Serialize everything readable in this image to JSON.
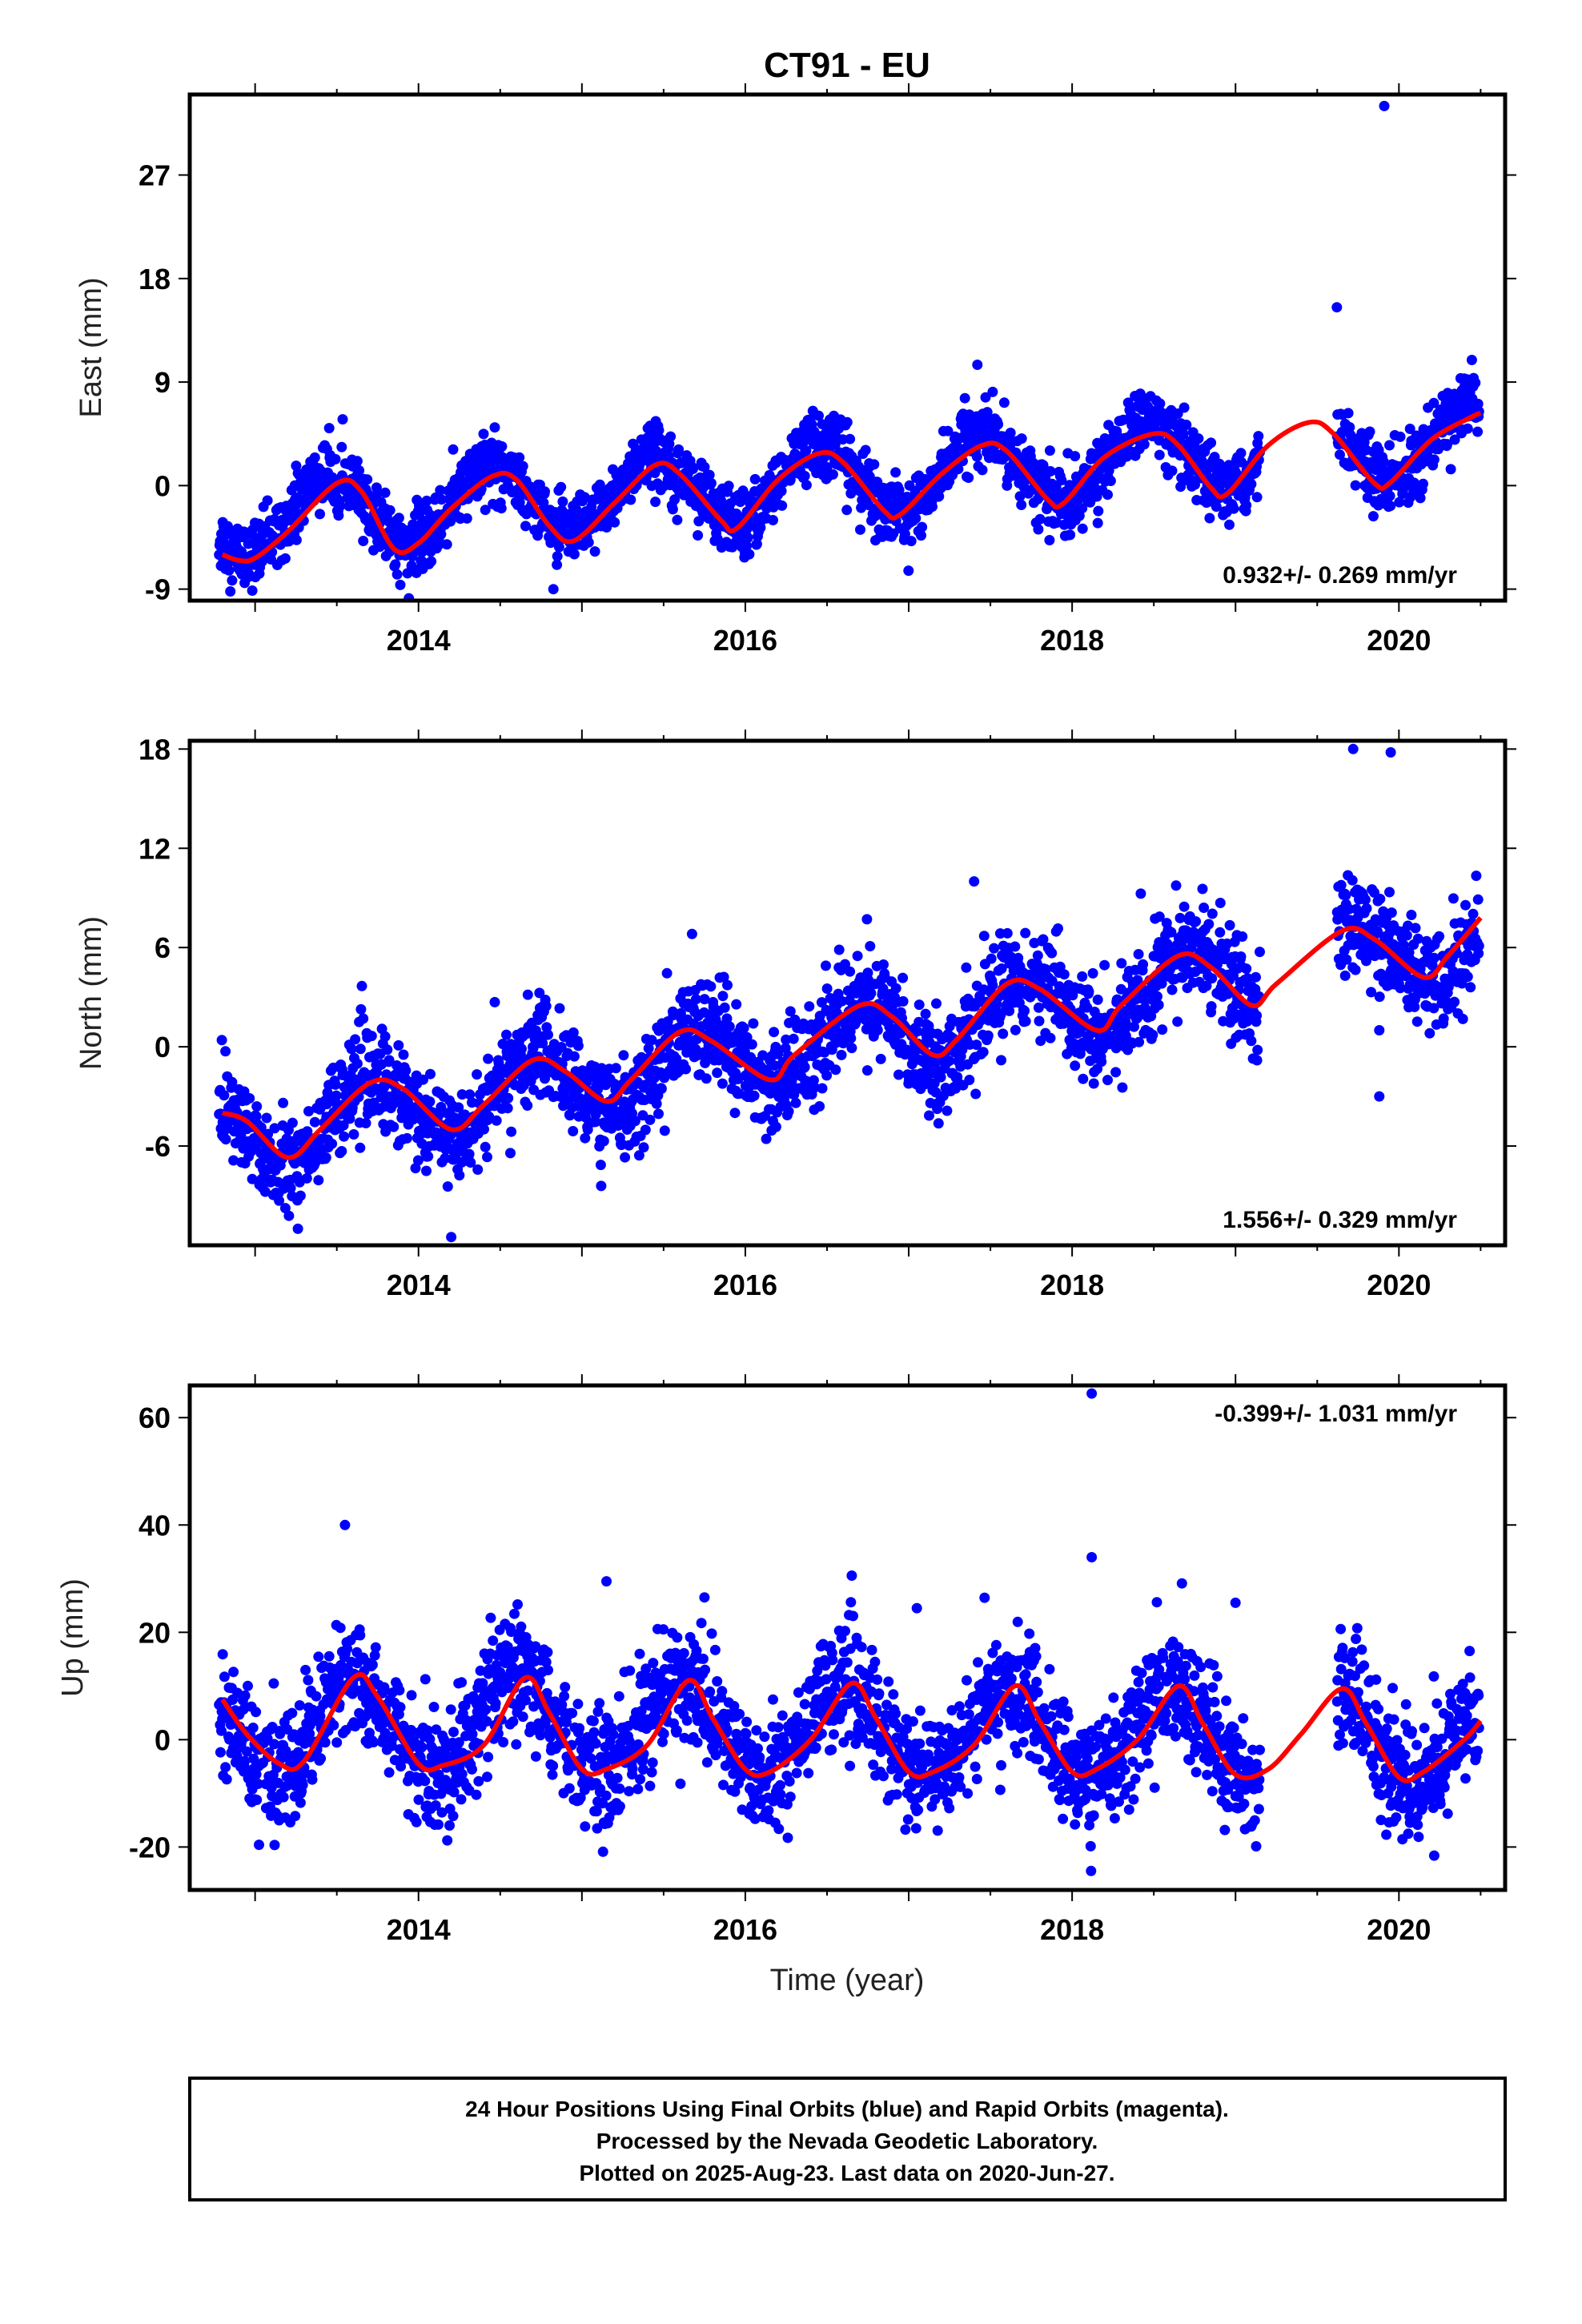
{
  "title": "CT91 - EU",
  "colors": {
    "final_orbits": "#0000ff",
    "model_fit": "#ff0000",
    "frame": "#000000"
  },
  "chart_data": [
    {
      "type": "scatter",
      "name": "east",
      "ylabel": "East (mm)",
      "xlabel": "",
      "xlim": [
        2012.6,
        2020.65
      ],
      "ylim": [
        -10,
        34
      ],
      "yticks": [
        "-9",
        "0",
        "9",
        "18",
        "27"
      ],
      "xticks": [
        "2014",
        "2016",
        "2018",
        "2020"
      ],
      "rate": "0.932+/- 0.269 mm/yr",
      "rate_position": "bottom-right",
      "trend": {
        "base": -3.0,
        "slope": 0.932,
        "t0": 2012.8,
        "amplitude": 3.2,
        "peak_phase": 0.45,
        "noise": 1.4
      },
      "gaps": [
        [
          2019.15,
          2019.62
        ]
      ],
      "outliers": [
        [
          2019.91,
          33.0
        ],
        [
          2019.62,
          15.5
        ],
        [
          2017.42,
          10.5
        ]
      ],
      "fit": [
        [
          2012.8,
          -6.0
        ],
        [
          2012.9,
          -6.5
        ],
        [
          2013.0,
          -6.3
        ],
        [
          2013.2,
          -4.0
        ],
        [
          2013.5,
          0.2
        ],
        [
          2013.65,
          -0.5
        ],
        [
          2013.85,
          -5.5
        ],
        [
          2014.0,
          -5.0
        ],
        [
          2014.2,
          -2.0
        ],
        [
          2014.45,
          0.8
        ],
        [
          2014.6,
          0.5
        ],
        [
          2014.8,
          -3.5
        ],
        [
          2014.95,
          -4.8
        ],
        [
          2015.2,
          -1.5
        ],
        [
          2015.45,
          1.8
        ],
        [
          2015.6,
          1.0
        ],
        [
          2015.85,
          -3.0
        ],
        [
          2015.95,
          -3.7
        ],
        [
          2016.2,
          0.5
        ],
        [
          2016.45,
          2.8
        ],
        [
          2016.6,
          2.0
        ],
        [
          2016.85,
          -2.2
        ],
        [
          2016.95,
          -2.5
        ],
        [
          2017.2,
          1.0
        ],
        [
          2017.45,
          3.5
        ],
        [
          2017.6,
          3.0
        ],
        [
          2017.85,
          -1.2
        ],
        [
          2017.95,
          -1.5
        ],
        [
          2018.2,
          2.5
        ],
        [
          2018.5,
          4.5
        ],
        [
          2018.65,
          3.5
        ],
        [
          2018.85,
          -0.2
        ],
        [
          2018.95,
          -0.7
        ],
        [
          2019.2,
          3.5
        ],
        [
          2019.45,
          5.5
        ],
        [
          2019.6,
          4.5
        ],
        [
          2019.85,
          0.2
        ],
        [
          2019.95,
          0.3
        ],
        [
          2020.2,
          4.0
        ],
        [
          2020.45,
          6.0
        ],
        [
          2020.5,
          6.3
        ]
      ]
    },
    {
      "type": "scatter",
      "name": "north",
      "ylabel": "North (mm)",
      "xlabel": "",
      "xlim": [
        2012.6,
        2020.65
      ],
      "ylim": [
        -12,
        18.5
      ],
      "yticks": [
        "-6",
        "0",
        "6",
        "12",
        "18"
      ],
      "xticks": [
        "2014",
        "2016",
        "2018",
        "2020"
      ],
      "rate": "1.556+/- 0.329 mm/yr",
      "rate_position": "bottom-right",
      "trend": {
        "base": -5.5,
        "slope": 1.556,
        "t0": 2012.8,
        "amplitude": 2.2,
        "peak_phase": 0.7,
        "noise": 1.5
      },
      "gaps": [
        [
          2019.15,
          2019.62
        ]
      ],
      "outliers": [
        [
          2019.72,
          18.0
        ],
        [
          2019.95,
          17.8
        ],
        [
          2019.88,
          -3.0
        ],
        [
          2019.88,
          1.0
        ],
        [
          2014.2,
          -11.5
        ],
        [
          2017.4,
          10.0
        ]
      ],
      "fit": [
        [
          2012.8,
          -4.0
        ],
        [
          2012.95,
          -4.5
        ],
        [
          2013.2,
          -6.7
        ],
        [
          2013.4,
          -5.0
        ],
        [
          2013.7,
          -2.2
        ],
        [
          2013.9,
          -2.5
        ],
        [
          2014.2,
          -5.0
        ],
        [
          2014.4,
          -3.5
        ],
        [
          2014.7,
          -0.8
        ],
        [
          2014.9,
          -1.5
        ],
        [
          2015.15,
          -3.3
        ],
        [
          2015.3,
          -2.0
        ],
        [
          2015.6,
          0.9
        ],
        [
          2015.8,
          0.3
        ],
        [
          2016.15,
          -2.0
        ],
        [
          2016.3,
          -0.5
        ],
        [
          2016.7,
          2.5
        ],
        [
          2016.9,
          1.8
        ],
        [
          2017.15,
          -0.5
        ],
        [
          2017.3,
          0.5
        ],
        [
          2017.6,
          3.8
        ],
        [
          2017.8,
          3.5
        ],
        [
          2018.15,
          1.0
        ],
        [
          2018.3,
          2.5
        ],
        [
          2018.65,
          5.5
        ],
        [
          2018.85,
          4.8
        ],
        [
          2019.1,
          2.5
        ],
        [
          2019.25,
          3.8
        ],
        [
          2019.65,
          7.0
        ],
        [
          2019.85,
          6.5
        ],
        [
          2020.15,
          4.2
        ],
        [
          2020.3,
          5.5
        ],
        [
          2020.5,
          7.8
        ]
      ]
    },
    {
      "type": "scatter",
      "name": "up",
      "ylabel": "Up (mm)",
      "xlabel": "Time (year)",
      "xlim": [
        2012.6,
        2020.65
      ],
      "ylim": [
        -28,
        66
      ],
      "yticks": [
        "-20",
        "0",
        "20",
        "40",
        "60"
      ],
      "xticks": [
        "2014",
        "2016",
        "2018",
        "2020"
      ],
      "rate": "-0.399+/- 1.031 mm/yr",
      "rate_position": "top-right",
      "trend": {
        "base": 3.0,
        "slope": -0.399,
        "t0": 2012.8,
        "amplitude": 8.5,
        "peak_phase": 0.6,
        "noise": 5.5
      },
      "gaps": [
        [
          2019.15,
          2019.62
        ]
      ],
      "outliers": [
        [
          2018.12,
          64.5
        ],
        [
          2018.12,
          34.0
        ],
        [
          2013.55,
          40.0
        ],
        [
          2015.15,
          29.5
        ],
        [
          2019.0,
          25.5
        ],
        [
          2017.05,
          24.5
        ],
        [
          2015.75,
          26.5
        ]
      ],
      "fit": [
        [
          2012.8,
          7.5
        ],
        [
          2012.95,
          1.0
        ],
        [
          2013.15,
          -4.5
        ],
        [
          2013.3,
          -4.0
        ],
        [
          2013.6,
          11.5
        ],
        [
          2013.75,
          8.0
        ],
        [
          2014.0,
          -4.5
        ],
        [
          2014.15,
          -4.8
        ],
        [
          2014.4,
          -1.0
        ],
        [
          2014.65,
          11.5
        ],
        [
          2014.8,
          5.0
        ],
        [
          2015.0,
          -5.5
        ],
        [
          2015.15,
          -5.5
        ],
        [
          2015.4,
          -1.0
        ],
        [
          2015.65,
          11.0
        ],
        [
          2015.8,
          4.0
        ],
        [
          2016.0,
          -5.5
        ],
        [
          2016.15,
          -6.0
        ],
        [
          2016.4,
          0.0
        ],
        [
          2016.65,
          10.5
        ],
        [
          2016.8,
          4.0
        ],
        [
          2017.0,
          -6.0
        ],
        [
          2017.15,
          -6.0
        ],
        [
          2017.4,
          -1.0
        ],
        [
          2017.65,
          10.0
        ],
        [
          2017.8,
          3.5
        ],
        [
          2018.0,
          -6.0
        ],
        [
          2018.15,
          -5.5
        ],
        [
          2018.4,
          0.0
        ],
        [
          2018.65,
          10.0
        ],
        [
          2018.8,
          3.0
        ],
        [
          2019.0,
          -6.5
        ],
        [
          2019.2,
          -5.5
        ],
        [
          2019.4,
          1.0
        ],
        [
          2019.65,
          9.5
        ],
        [
          2019.8,
          3.0
        ],
        [
          2020.0,
          -7.0
        ],
        [
          2020.15,
          -6.0
        ],
        [
          2020.4,
          0.0
        ],
        [
          2020.5,
          3.5
        ]
      ]
    }
  ],
  "footer": {
    "lines": [
      "24 Hour Positions Using Final Orbits (blue) and Rapid Orbits (magenta).",
      "Processed by the Nevada Geodetic Laboratory.",
      "Plotted on 2025-Aug-23. Last data on 2020-Jun-27."
    ]
  }
}
